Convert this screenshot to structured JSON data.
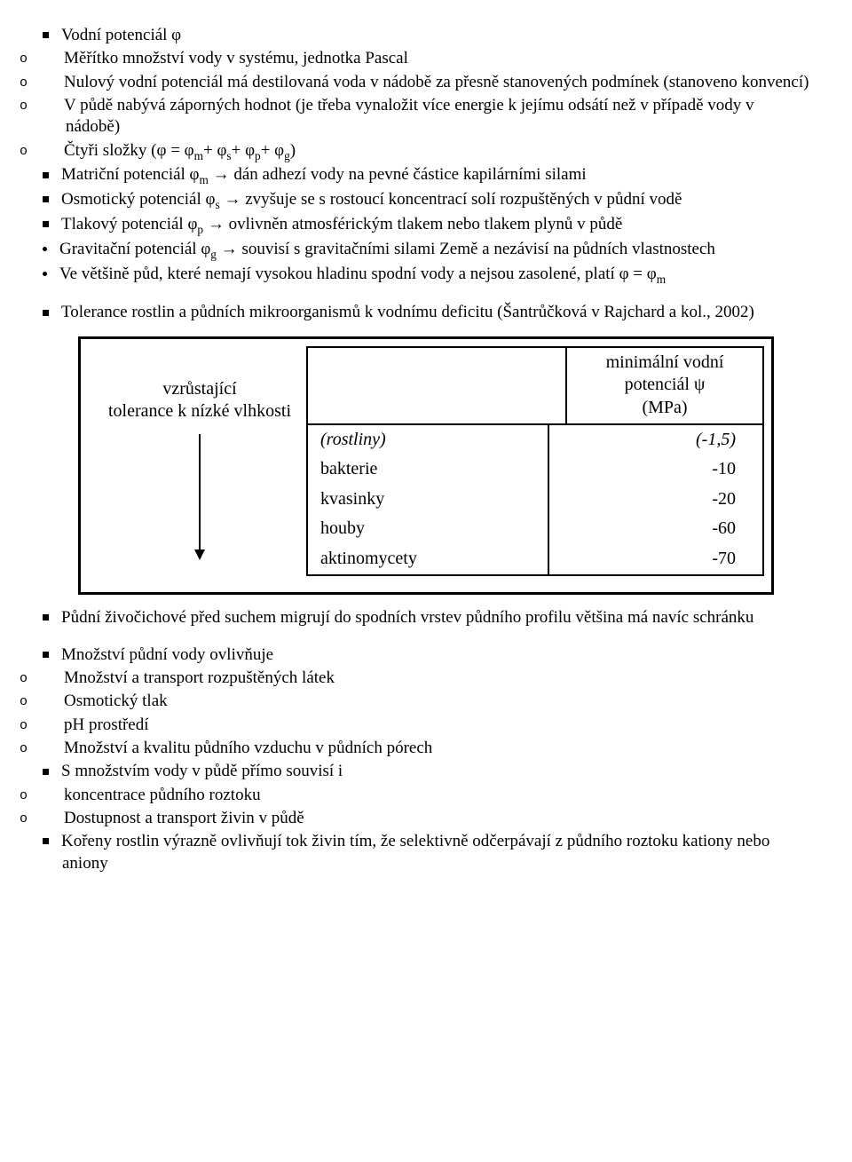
{
  "s1": {
    "title": "Vodní potenciál φ",
    "items": [
      "Měřítko množství vody v systému, jednotka Pascal",
      "Nulový vodní potenciál má destilovaná voda v nádobě za přesně stanovených podmínek (stanoveno konvencí)",
      "V půdě nabývá záporných hodnot (je třeba vynaložit více energie k jejímu odsátí než v případě vody v nádobě)",
      "Čtyři složky (φ = φm+ φs+ φp+ φg)"
    ],
    "sub": [
      "Matriční potenciál φm → dán adhezí vody na pevné částice kapilárními silami",
      "Osmotický potenciál φs → zvyšuje se s rostoucí koncentrací solí rozpuštěných v půdní vodě",
      "Tlakový potenciál φp → ovlivněn atmosférickým tlakem nebo tlakem plynů v půdě",
      "Gravitační potenciál φg → souvisí s gravitačními silami Země a nezávisí na půdních vlastnostech",
      "Ve většině půd, které nemají vysokou hladinu spodní vody a nejsou zasolené, platí φ = φm"
    ]
  },
  "s2": "Tolerance rostlin a půdních mikroorganismů k vodnímu deficitu (Šantrůčková v Rajchard a kol., 2002)",
  "fig": {
    "left1": "vzrůstající",
    "left2": "tolerance k nízké vlhkosti",
    "hdr2a": "minimální vodní potenciál ψ",
    "hdr2b": "(MPa)",
    "rows": [
      {
        "c1": "(rostliny)",
        "c2": "(-1,5)",
        "ital": true
      },
      {
        "c1": "bakterie",
        "c2": "-10"
      },
      {
        "c1": "kvasinky",
        "c2": "-20"
      },
      {
        "c1": "houby",
        "c2": "-60"
      },
      {
        "c1": "aktinomycety",
        "c2": "-70"
      }
    ],
    "border_color": "#000000",
    "background": "#ffffff",
    "font_size": 20
  },
  "s3": "Půdní živočichové před suchem migrují do spodních vrstev půdního profilu většina má navíc schránku",
  "s4": {
    "title": "Množství půdní vody ovlivňuje",
    "items": [
      "Množství a transport rozpuštěných látek",
      "Osmotický tlak",
      "pH prostředí",
      "Množství a kvalitu půdního vzduchu v půdních pórech"
    ]
  },
  "s5": {
    "title": "S množstvím vody v půdě přímo souvisí i",
    "items": [
      "koncentrace půdního roztoku",
      "Dostupnost a transport živin v půdě"
    ]
  },
  "s6": "Kořeny rostlin výrazně ovlivňují tok živin tím, že selektivně odčerpávají z půdního roztoku kationy nebo aniony"
}
